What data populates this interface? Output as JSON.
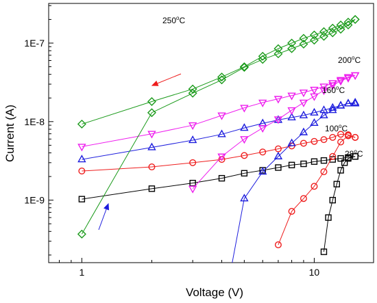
{
  "chart_data": {
    "type": "scatter",
    "xlabel": "Voltage (V)",
    "ylabel": "Current (A)",
    "xscale": "log",
    "yscale": "log",
    "xlim": [
      0.72,
      18
    ],
    "ylim": [
      1.6e-10,
      3.2e-07
    ],
    "x_ticks": [
      {
        "value": 1,
        "label": "1"
      },
      {
        "value": 10,
        "label": "10"
      }
    ],
    "y_ticks": [
      {
        "value": 1e-09,
        "label": "1E-9"
      },
      {
        "value": 1e-08,
        "label": "1E-8"
      },
      {
        "value": 1e-07,
        "label": "1E-7"
      }
    ],
    "degree_symbol": "o",
    "temperature_unit": "C",
    "arrows": {
      "sweep_down_color": "#ee1c1c",
      "sweep_up_color": "#1c1cdd"
    },
    "series": [
      {
        "name": "28",
        "color": "#000000",
        "marker": "square",
        "forward": {
          "x": [
            11,
            11.5,
            12,
            12.5,
            13,
            13.5,
            14,
            15
          ],
          "y": [
            2.2e-10,
            6e-10,
            1e-09,
            1.6e-09,
            2.4e-09,
            3e-09,
            3.4e-09,
            3.6e-09
          ]
        },
        "reverse": {
          "x": [
            15,
            14,
            13,
            12,
            11,
            10,
            9,
            8,
            7,
            6,
            5,
            4,
            3,
            2,
            1
          ],
          "y": [
            3.6e-09,
            3.5e-09,
            3.4e-09,
            3.3e-09,
            3.2e-09,
            3.1e-09,
            2.9e-09,
            2.8e-09,
            2.6e-09,
            2.4e-09,
            2.2e-09,
            1.9e-09,
            1.65e-09,
            1.4e-09,
            1.03e-09
          ]
        }
      },
      {
        "name": "100",
        "color": "#ee1c1c",
        "marker": "circle",
        "forward": {
          "x": [
            7,
            8,
            9,
            10,
            11,
            12,
            13,
            14,
            15
          ],
          "y": [
            2.7e-10,
            7.2e-10,
            1.05e-09,
            1.5e-09,
            2.3e-09,
            3.6e-09,
            5.5e-09,
            6.6e-09,
            6.3e-09
          ]
        },
        "reverse": {
          "x": [
            15,
            14,
            13,
            12,
            11,
            10,
            9,
            8,
            7,
            6,
            5,
            4,
            3,
            2,
            1
          ],
          "y": [
            6.3e-09,
            6.8e-09,
            6.9e-09,
            6.3e-09,
            5.9e-09,
            5.6e-09,
            5.3e-09,
            4.9e-09,
            4.5e-09,
            4.1e-09,
            3.7e-09,
            3.3e-09,
            3e-09,
            2.65e-09,
            2.35e-09
          ]
        }
      },
      {
        "name": "160",
        "color": "#1c1cdd",
        "marker": "triangle-up",
        "forward": {
          "x": [
            4.4,
            5,
            6,
            7,
            8,
            9,
            10,
            11,
            12,
            13,
            14,
            15
          ],
          "y": [
            1.4e-10,
            1.05e-09,
            2.3e-09,
            3.6e-09,
            5.3e-09,
            7.3e-09,
            9.6e-09,
            1.2e-08,
            1.4e-08,
            1.6e-08,
            1.7e-08,
            1.7e-08
          ]
        },
        "reverse": {
          "x": [
            15,
            14,
            13,
            12,
            11,
            10,
            9,
            8,
            7,
            6,
            5,
            4,
            3,
            2,
            1
          ],
          "y": [
            1.75e-08,
            1.7e-08,
            1.6e-08,
            1.5e-08,
            1.4e-08,
            1.3e-08,
            1.2e-08,
            1.13e-08,
            1.05e-08,
            9.5e-09,
            8.3e-09,
            6.9e-09,
            5.8e-09,
            4.7e-09,
            3.3e-09
          ]
        }
      },
      {
        "name": "200",
        "color": "#ee1cee",
        "marker": "triangle-down",
        "forward": {
          "x": [
            3,
            4,
            5,
            6,
            7,
            8,
            9,
            10,
            11,
            12,
            13,
            14,
            15
          ],
          "y": [
            1.4e-09,
            3.6e-09,
            6e-09,
            8.3e-09,
            1.07e-08,
            1.4e-08,
            1.75e-08,
            2.1e-08,
            2.5e-08,
            2.9e-08,
            3.3e-08,
            3.6e-08,
            3.9e-08
          ]
        },
        "reverse": {
          "x": [
            15,
            14,
            13,
            12,
            11,
            10,
            9,
            8,
            7,
            6,
            5,
            4,
            3,
            2,
            1
          ],
          "y": [
            3.9e-08,
            3.7e-08,
            3.4e-08,
            3.1e-08,
            2.8e-08,
            2.55e-08,
            2.35e-08,
            2.15e-08,
            1.95e-08,
            1.75e-08,
            1.5e-08,
            1.2e-08,
            9e-09,
            7e-09,
            4.8e-09
          ]
        }
      },
      {
        "name": "250",
        "color": "#1a9a1a",
        "marker": "diamond",
        "forward": {
          "x": [
            1,
            2,
            3,
            4,
            5,
            6,
            7,
            8,
            9,
            10,
            11,
            12,
            13,
            14,
            15
          ],
          "y": [
            3.7e-10,
            1.3e-08,
            2.3e-08,
            3.4e-08,
            4.9e-08,
            6.2e-08,
            7.3e-08,
            8.5e-08,
            9.7e-08,
            1.09e-07,
            1.22e-07,
            1.35e-07,
            1.5e-07,
            1.7e-07,
            2e-07
          ]
        },
        "reverse": {
          "x": [
            15,
            14,
            13,
            12,
            11,
            10,
            9,
            8,
            7,
            6,
            5,
            4,
            3,
            2,
            1
          ],
          "y": [
            2e-07,
            1.85e-07,
            1.7e-07,
            1.55e-07,
            1.4e-07,
            1.27e-07,
            1.15e-07,
            1e-07,
            8.5e-08,
            6.8e-08,
            5e-08,
            3.7e-08,
            2.6e-08,
            1.8e-08,
            9.3e-09
          ]
        }
      }
    ]
  }
}
